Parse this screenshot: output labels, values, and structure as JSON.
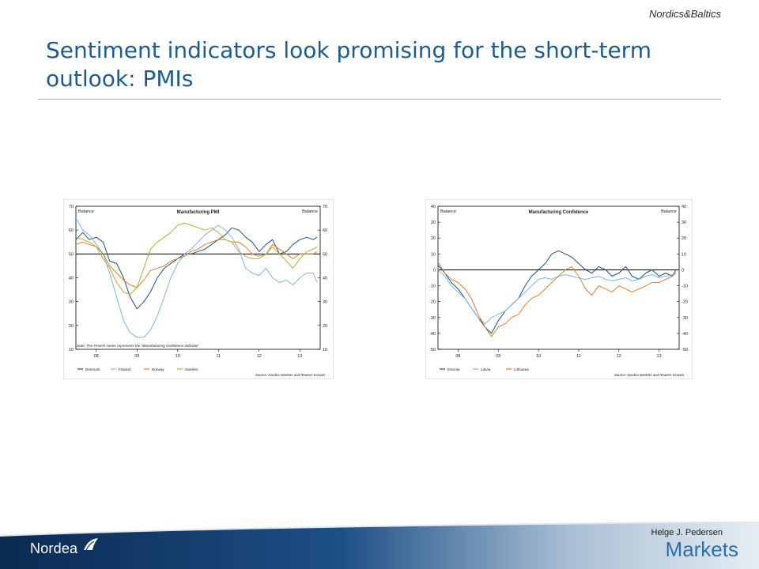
{
  "slide": {
    "region_label": "Nordics&Baltics",
    "title": "Sentiment indicators look promising for the short-term outlook: PMIs",
    "author": "Helge J. Pedersen",
    "logo_text": "Nordea",
    "brand_text": "Markets"
  },
  "colors": {
    "title": "#1f5c8e",
    "footer_dark": "#0d2f5c",
    "footer_light": "#c6d3df",
    "markets": "#2a6fb0"
  },
  "chart_data": [
    {
      "type": "line",
      "title": "Manufacturing PMI",
      "ylabel_left": "Balance",
      "ylabel_right": "Balance",
      "ylim": [
        10,
        70
      ],
      "yticks": [
        10,
        20,
        30,
        40,
        50,
        60,
        70
      ],
      "reference_line": 50,
      "x_range": [
        2007.5,
        2013.5
      ],
      "xticks": [
        {
          "x": 2008,
          "label": "08"
        },
        {
          "x": 2009,
          "label": "09"
        },
        {
          "x": 2010,
          "label": "10"
        },
        {
          "x": 2011,
          "label": "11"
        },
        {
          "x": 2012,
          "label": "12"
        },
        {
          "x": 2013,
          "label": "13"
        }
      ],
      "note": "Note: The Finnish series represents the 'Manufacturing confidence indicator'",
      "source": "Source: Nordea Markets and Reuters Ecowin",
      "legend_position": "bottom",
      "series": [
        {
          "name": "Denmark",
          "color": "#1f4e79",
          "x": [
            2007.5,
            2007.67,
            2007.83,
            2008.0,
            2008.17,
            2008.33,
            2008.5,
            2008.67,
            2008.83,
            2009.0,
            2009.17,
            2009.33,
            2009.5,
            2009.67,
            2009.83,
            2010.0,
            2010.17,
            2010.33,
            2010.5,
            2010.67,
            2010.83,
            2011.0,
            2011.17,
            2011.33,
            2011.5,
            2011.67,
            2011.83,
            2012.0,
            2012.17,
            2012.33,
            2012.5,
            2012.67,
            2012.83,
            2013.0,
            2013.17,
            2013.33,
            2013.42
          ],
          "y": [
            56,
            59,
            56,
            57,
            55,
            47,
            46,
            40,
            32,
            27,
            30,
            34,
            40,
            44,
            46,
            48,
            50,
            50,
            51,
            52,
            54,
            56,
            58,
            61,
            60,
            57,
            55,
            51,
            54,
            56,
            50,
            51,
            54,
            56,
            57,
            56,
            57
          ]
        },
        {
          "name": "Finland",
          "color": "#7fb4e0",
          "x": [
            2007.5,
            2007.67,
            2007.83,
            2008.0,
            2008.17,
            2008.33,
            2008.5,
            2008.67,
            2008.83,
            2009.0,
            2009.17,
            2009.33,
            2009.5,
            2009.67,
            2009.83,
            2010.0,
            2010.17,
            2010.33,
            2010.5,
            2010.67,
            2010.83,
            2011.0,
            2011.17,
            2011.33,
            2011.5,
            2011.67,
            2011.83,
            2012.0,
            2012.17,
            2012.33,
            2012.5,
            2012.67,
            2012.83,
            2013.0,
            2013.17,
            2013.33,
            2013.42
          ],
          "y": [
            65,
            60,
            58,
            54,
            50,
            42,
            32,
            22,
            17,
            15,
            15,
            18,
            24,
            32,
            40,
            46,
            50,
            52,
            55,
            58,
            60,
            62,
            60,
            57,
            52,
            44,
            42,
            41,
            44,
            40,
            38,
            39,
            37,
            40,
            42,
            42,
            38
          ]
        },
        {
          "name": "Norway",
          "color": "#d9822b",
          "x": [
            2007.5,
            2007.67,
            2007.83,
            2008.0,
            2008.17,
            2008.33,
            2008.5,
            2008.67,
            2008.83,
            2009.0,
            2009.17,
            2009.33,
            2009.5,
            2009.67,
            2009.83,
            2010.0,
            2010.17,
            2010.33,
            2010.5,
            2010.67,
            2010.83,
            2011.0,
            2011.17,
            2011.33,
            2011.5,
            2011.67,
            2011.83,
            2012.0,
            2012.17,
            2012.33,
            2012.5,
            2012.67,
            2012.83,
            2013.0,
            2013.17,
            2013.33,
            2013.42
          ],
          "y": [
            54,
            55,
            54,
            53,
            50,
            45,
            42,
            39,
            37,
            36,
            39,
            43,
            44,
            45,
            47,
            48,
            49,
            51,
            52,
            54,
            55,
            56,
            56,
            55,
            55,
            53,
            50,
            49,
            50,
            54,
            52,
            50,
            48,
            50,
            50,
            50,
            51
          ]
        },
        {
          "name": "Sweden",
          "color": "#b8a83a",
          "x": [
            2007.5,
            2007.67,
            2007.83,
            2008.0,
            2008.17,
            2008.33,
            2008.5,
            2008.67,
            2008.83,
            2009.0,
            2009.17,
            2009.33,
            2009.5,
            2009.67,
            2009.83,
            2010.0,
            2010.17,
            2010.33,
            2010.5,
            2010.67,
            2010.83,
            2011.0,
            2011.17,
            2011.33,
            2011.5,
            2011.67,
            2011.83,
            2012.0,
            2012.17,
            2012.33,
            2012.5,
            2012.67,
            2012.83,
            2013.0,
            2013.17,
            2013.33,
            2013.42
          ],
          "y": [
            57,
            56,
            55,
            53,
            48,
            44,
            38,
            34,
            33,
            36,
            44,
            52,
            55,
            57,
            59,
            62,
            63,
            62,
            61,
            60,
            61,
            59,
            56,
            55,
            51,
            49,
            48,
            48,
            50,
            53,
            50,
            47,
            44,
            48,
            51,
            52,
            53
          ]
        }
      ]
    },
    {
      "type": "line",
      "title": "Manufacturing Confidence",
      "ylabel_left": "Balance",
      "ylabel_right": "Balance",
      "ylim": [
        -50,
        40
      ],
      "yticks": [
        -50,
        -40,
        -30,
        -20,
        -10,
        0,
        10,
        20,
        30,
        40
      ],
      "reference_line": 0,
      "x_range": [
        2007.5,
        2013.5
      ],
      "xticks": [
        {
          "x": 2008,
          "label": "08"
        },
        {
          "x": 2009,
          "label": "09"
        },
        {
          "x": 2010,
          "label": "10"
        },
        {
          "x": 2011,
          "label": "11"
        },
        {
          "x": 2012,
          "label": "12"
        },
        {
          "x": 2013,
          "label": "13"
        }
      ],
      "source": "Source: Nordea Markets and Reuters Ecowin",
      "legend_position": "bottom",
      "series": [
        {
          "name": "Estonia",
          "color": "#1f4e79",
          "x": [
            2007.5,
            2007.67,
            2007.83,
            2008.0,
            2008.17,
            2008.33,
            2008.5,
            2008.67,
            2008.83,
            2009.0,
            2009.17,
            2009.33,
            2009.5,
            2009.67,
            2009.83,
            2010.0,
            2010.17,
            2010.33,
            2010.5,
            2010.67,
            2010.83,
            2011.0,
            2011.17,
            2011.33,
            2011.5,
            2011.67,
            2011.83,
            2012.0,
            2012.17,
            2012.33,
            2012.5,
            2012.67,
            2012.83,
            2013.0,
            2013.17,
            2013.33,
            2013.42
          ],
          "y": [
            3,
            -2,
            -8,
            -12,
            -18,
            -24,
            -30,
            -36,
            -40,
            -32,
            -26,
            -22,
            -18,
            -10,
            -4,
            0,
            4,
            10,
            12,
            10,
            8,
            4,
            0,
            -2,
            2,
            0,
            -4,
            -2,
            2,
            -4,
            -6,
            -2,
            0,
            -4,
            -2,
            -4,
            0
          ]
        },
        {
          "name": "Latvia",
          "color": "#7fb4e0",
          "x": [
            2007.5,
            2007.67,
            2007.83,
            2008.0,
            2008.17,
            2008.33,
            2008.5,
            2008.67,
            2008.83,
            2009.0,
            2009.17,
            2009.33,
            2009.5,
            2009.67,
            2009.83,
            2010.0,
            2010.17,
            2010.33,
            2010.5,
            2010.67,
            2010.83,
            2011.0,
            2011.17,
            2011.33,
            2011.5,
            2011.67,
            2011.83,
            2012.0,
            2012.17,
            2012.33,
            2012.5,
            2012.67,
            2012.83,
            2013.0,
            2013.17,
            2013.33,
            2013.42
          ],
          "y": [
            0,
            -4,
            -10,
            -14,
            -18,
            -24,
            -30,
            -34,
            -30,
            -28,
            -26,
            -22,
            -18,
            -14,
            -10,
            -6,
            -5,
            -6,
            -4,
            -3,
            -4,
            -5,
            -6,
            -5,
            -4,
            -6,
            -7,
            -6,
            -5,
            -7,
            -6,
            -4,
            -3,
            -5,
            -4,
            -3,
            -2
          ]
        },
        {
          "name": "Lithuania",
          "color": "#d9822b",
          "x": [
            2007.5,
            2007.67,
            2007.83,
            2008.0,
            2008.17,
            2008.33,
            2008.5,
            2008.67,
            2008.83,
            2009.0,
            2009.17,
            2009.33,
            2009.5,
            2009.67,
            2009.83,
            2010.0,
            2010.17,
            2010.33,
            2010.5,
            2010.67,
            2010.83,
            2011.0,
            2011.17,
            2011.33,
            2011.5,
            2011.67,
            2011.83,
            2012.0,
            2012.17,
            2012.33,
            2012.5,
            2012.67,
            2012.83,
            2013.0,
            2013.17,
            2013.33,
            2013.42
          ],
          "y": [
            5,
            -2,
            -6,
            -8,
            -12,
            -18,
            -28,
            -36,
            -42,
            -36,
            -34,
            -30,
            -28,
            -22,
            -18,
            -16,
            -12,
            -8,
            -4,
            0,
            2,
            -4,
            -12,
            -16,
            -10,
            -12,
            -14,
            -10,
            -12,
            -14,
            -12,
            -10,
            -8,
            -8,
            -6,
            -4,
            -2
          ]
        }
      ]
    }
  ]
}
